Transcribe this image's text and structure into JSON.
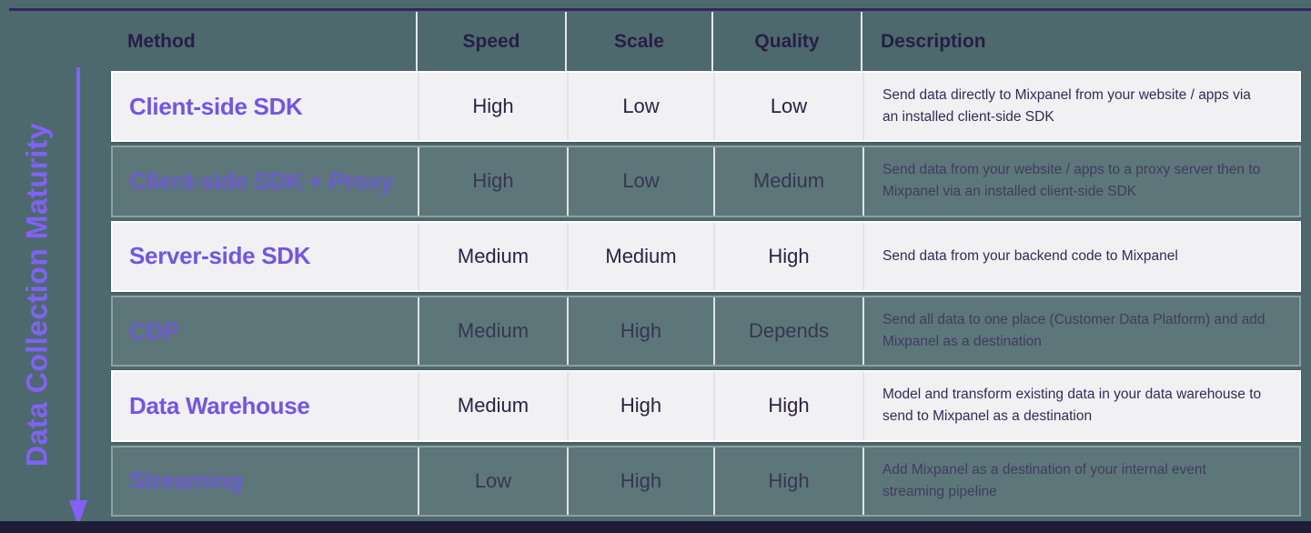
{
  "theme": {
    "background": "#4e696d",
    "accent_purple": "#7155ea",
    "side_label_purple": "#8161f6",
    "header_text": "#261e47",
    "value_text": "#2a2342",
    "desc_text": "#342c55",
    "row_bg": "#f1f0f2",
    "top_line": "#32265c",
    "bottom_bar": "#1f1c38"
  },
  "side_axis": {
    "label": "Data Collection Maturity",
    "arrow_icon": "arrow-down"
  },
  "table": {
    "headers": [
      "Method",
      "Speed",
      "Scale",
      "Quality",
      "Description"
    ],
    "rows": [
      {
        "method": "Client-side SDK",
        "speed": "High",
        "scale": "Low",
        "quality": "Low",
        "description": "Send data directly to Mixpanel from your website / apps via an installed client-side SDK",
        "faded": false
      },
      {
        "method": "Client-side SDK + Proxy",
        "speed": "High",
        "scale": "Low",
        "quality": "Medium",
        "description": "Send data from your website / apps to a proxy server then to Mixpanel via an installed client-side SDK",
        "faded": true
      },
      {
        "method": "Server-side SDK",
        "speed": "Medium",
        "scale": "Medium",
        "quality": "High",
        "description": "Send data from your backend code to Mixpanel",
        "faded": false
      },
      {
        "method": "CDP",
        "speed": "Medium",
        "scale": "High",
        "quality": "Depends",
        "description": "Send all data to one place (Customer Data Platform) and add Mixpanel as a destination",
        "faded": true
      },
      {
        "method": "Data Warehouse",
        "speed": "Medium",
        "scale": "High",
        "quality": "High",
        "description": "Model and transform existing data in your data warehouse to send to Mixpanel as a destination",
        "faded": false
      },
      {
        "method": "Streaming",
        "speed": "Low",
        "scale": "High",
        "quality": "High",
        "description": "Add Mixpanel as a destination of your internal event streaming pipeline",
        "faded": true
      }
    ]
  }
}
